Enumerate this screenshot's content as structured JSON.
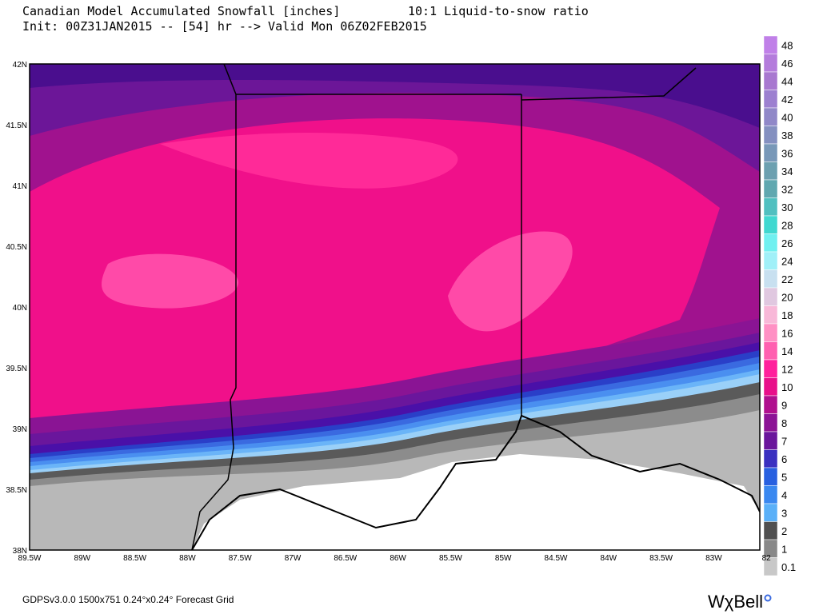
{
  "header": {
    "title": "Canadian Model Accumulated Snowfall [inches]",
    "ratio": "10:1 Liquid-to-snow ratio",
    "init": "Init: 00Z31JAN2015 -- [54] hr --> Valid Mon 06Z02FEB2015"
  },
  "map": {
    "lat_labels": [
      "42N",
      "41.5N",
      "41N",
      "40.5N",
      "40N",
      "39.5N",
      "39N",
      "38.5N",
      "38N"
    ],
    "lon_labels": [
      "89.5W",
      "89W",
      "88.5W",
      "88W",
      "87.5W",
      "87W",
      "86.5W",
      "86W",
      "85.5W",
      "85W",
      "84.5W",
      "84W",
      "83.5W",
      "83W",
      "82"
    ]
  },
  "colorbar": {
    "labels": [
      "48",
      "46",
      "44",
      "42",
      "40",
      "38",
      "36",
      "34",
      "32",
      "30",
      "28",
      "26",
      "24",
      "22",
      "20",
      "18",
      "16",
      "14",
      "12",
      "10",
      "9",
      "8",
      "7",
      "6",
      "5",
      "4",
      "3",
      "2",
      "1",
      "0.1"
    ]
  },
  "footer": {
    "info": "GDPSv3.0.0 1500x751 0.24°x0.24° Forecast Grid",
    "brand": "WχBell"
  }
}
